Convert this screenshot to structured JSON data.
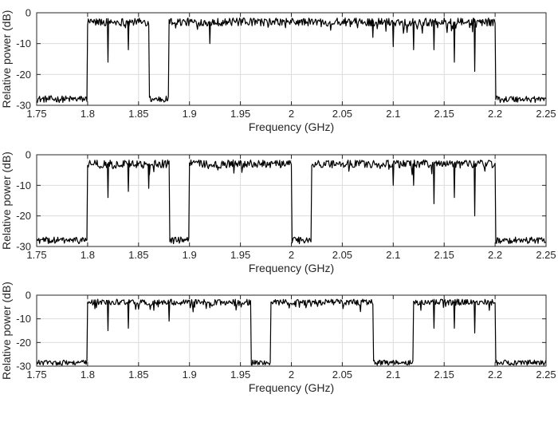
{
  "chart_data": [
    {
      "type": "line",
      "xlabel": "Frequency (GHz)",
      "ylabel": "Relative power (dB)",
      "xlim": [
        1.75,
        2.25
      ],
      "ylim": [
        -30,
        0
      ],
      "xticks": [
        "1.75",
        "1.8",
        "1.85",
        "1.9",
        "1.95",
        "2",
        "2.05",
        "2.1",
        "2.15",
        "2.2",
        "2.25"
      ],
      "yticks": [
        "0",
        "-10",
        "-20",
        "-30"
      ],
      "grid": true,
      "legend": "none",
      "color": "#000000",
      "bands": [
        {
          "start": 1.8,
          "end": 1.86,
          "level": -3
        },
        {
          "start": 1.88,
          "end": 2.2,
          "level": -3
        }
      ],
      "notches": [
        {
          "x": 1.82,
          "value": -16
        },
        {
          "x": 1.84,
          "value": -12
        },
        {
          "x": 1.92,
          "value": -10
        },
        {
          "x": 2.08,
          "value": -8
        },
        {
          "x": 2.1,
          "value": -11
        },
        {
          "x": 2.12,
          "value": -12
        },
        {
          "x": 2.14,
          "value": -12
        },
        {
          "x": 2.16,
          "value": -16
        },
        {
          "x": 2.18,
          "value": -19
        }
      ],
      "noise_floor": -28
    },
    {
      "type": "line",
      "xlabel": "Frequency (GHz)",
      "ylabel": "Relative power (dB)",
      "xlim": [
        1.75,
        2.25
      ],
      "ylim": [
        -30,
        0
      ],
      "xticks": [
        "1.75",
        "1.8",
        "1.85",
        "1.9",
        "1.95",
        "2",
        "2.05",
        "2.1",
        "2.15",
        "2.2",
        "2.25"
      ],
      "yticks": [
        "0",
        "-10",
        "-20",
        "-30"
      ],
      "grid": true,
      "legend": "none",
      "color": "#000000",
      "bands": [
        {
          "start": 1.8,
          "end": 1.88,
          "level": -3
        },
        {
          "start": 1.9,
          "end": 2.0,
          "level": -3
        },
        {
          "start": 2.02,
          "end": 2.2,
          "level": -3
        }
      ],
      "notches": [
        {
          "x": 1.82,
          "value": -14
        },
        {
          "x": 1.84,
          "value": -12
        },
        {
          "x": 1.86,
          "value": -11
        },
        {
          "x": 2.1,
          "value": -10
        },
        {
          "x": 2.12,
          "value": -10
        },
        {
          "x": 2.14,
          "value": -16
        },
        {
          "x": 2.16,
          "value": -14
        },
        {
          "x": 2.18,
          "value": -20
        }
      ],
      "noise_floor": -28
    },
    {
      "type": "line",
      "xlabel": "Frequency (GHz)",
      "ylabel": "Relative power (dB)",
      "xlim": [
        1.75,
        2.25
      ],
      "ylim": [
        -30,
        0
      ],
      "xticks": [
        "1.75",
        "1.8",
        "1.85",
        "1.9",
        "1.95",
        "2",
        "2.05",
        "2.1",
        "2.15",
        "2.2",
        "2.25"
      ],
      "yticks": [
        "0",
        "-10",
        "-20",
        "-30"
      ],
      "grid": true,
      "legend": "none",
      "color": "#000000",
      "bands": [
        {
          "start": 1.8,
          "end": 1.96,
          "level": -3
        },
        {
          "start": 1.98,
          "end": 2.08,
          "level": -3
        },
        {
          "start": 2.12,
          "end": 2.2,
          "level": -3
        }
      ],
      "notches": [
        {
          "x": 1.82,
          "value": -15
        },
        {
          "x": 1.84,
          "value": -14
        },
        {
          "x": 1.88,
          "value": -11
        },
        {
          "x": 2.14,
          "value": -14
        },
        {
          "x": 2.16,
          "value": -14
        },
        {
          "x": 2.18,
          "value": -16
        }
      ],
      "noise_floor": -28.5
    }
  ]
}
